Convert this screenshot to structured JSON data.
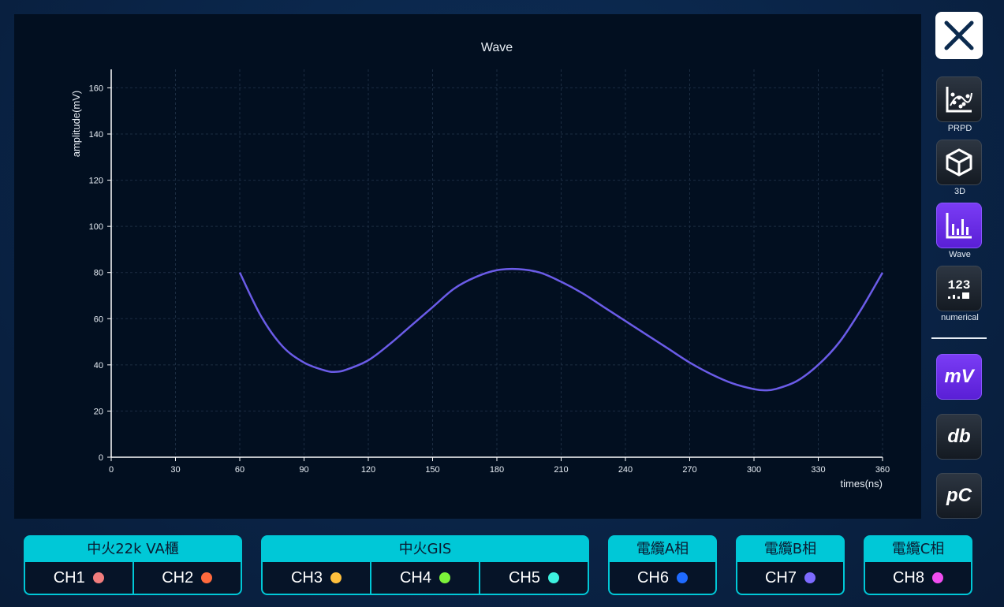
{
  "chart_data": {
    "type": "line",
    "title": "Wave",
    "xlabel": "times(ns)",
    "ylabel": "amplitude(mV)",
    "xlim": [
      0,
      360
    ],
    "ylim": [
      0,
      168
    ],
    "x_ticks": [
      0,
      30,
      60,
      90,
      120,
      150,
      180,
      210,
      240,
      270,
      300,
      330,
      360
    ],
    "y_ticks": [
      0,
      20,
      40,
      60,
      80,
      100,
      120,
      140,
      160
    ],
    "grid": true,
    "series": [
      {
        "color": "#6b5ce8",
        "x": [
          60,
          70,
          80,
          90,
          100,
          105,
          110,
          120,
          130,
          140,
          150,
          160,
          170,
          180,
          190,
          200,
          210,
          220,
          230,
          240,
          250,
          260,
          270,
          280,
          290,
          300,
          305,
          310,
          320,
          330,
          340,
          350,
          360
        ],
        "y": [
          80,
          61,
          48,
          41,
          37.5,
          37,
          38,
          42,
          49,
          57,
          65,
          73,
          78,
          81,
          81.5,
          80,
          76,
          71,
          65,
          59,
          53,
          47,
          41,
          36,
          32,
          29.5,
          29,
          29.5,
          33,
          40,
          50,
          64,
          80
        ]
      }
    ]
  },
  "sidebar": {
    "modes": [
      {
        "label": "PRPD",
        "active": false
      },
      {
        "label": "3D",
        "active": false
      },
      {
        "label": "Wave",
        "active": true
      },
      {
        "label": "numerical",
        "active": false
      }
    ],
    "units": [
      {
        "label": "mV",
        "active": true
      },
      {
        "label": "db",
        "active": false
      },
      {
        "label": "pC",
        "active": false
      }
    ]
  },
  "groups": [
    {
      "title": "中火22k VA櫃",
      "channels": [
        {
          "label": "CH1",
          "color": "#f07d7d"
        },
        {
          "label": "CH2",
          "color": "#ff6a3d"
        }
      ]
    },
    {
      "title": "中火GIS",
      "channels": [
        {
          "label": "CH3",
          "color": "#ffc03d"
        },
        {
          "label": "CH4",
          "color": "#7cf23a"
        },
        {
          "label": "CH5",
          "color": "#3df2e0"
        }
      ]
    },
    {
      "title": "電纜A相",
      "channels": [
        {
          "label": "CH6",
          "color": "#1f6bff"
        }
      ]
    },
    {
      "title": "電纜B相",
      "channels": [
        {
          "label": "CH7",
          "color": "#7d6bff"
        }
      ]
    },
    {
      "title": "電纜C相",
      "channels": [
        {
          "label": "CH8",
          "color": "#f04ef0"
        }
      ]
    }
  ]
}
